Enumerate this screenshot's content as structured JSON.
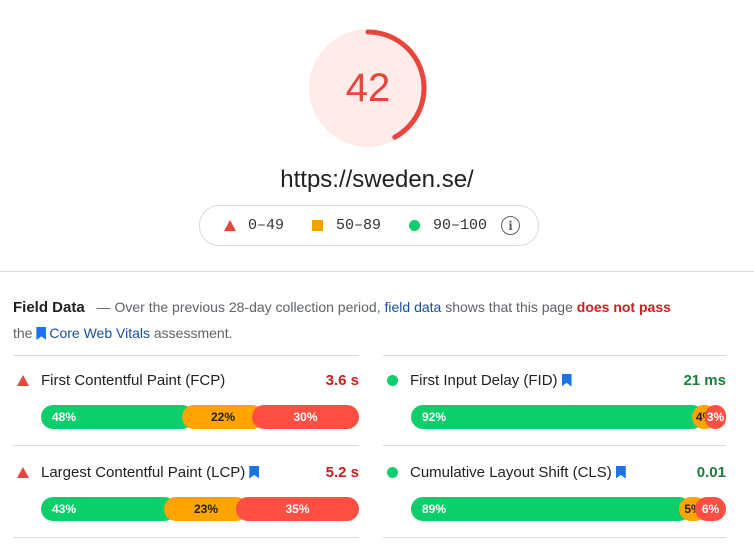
{
  "score": {
    "value": "42",
    "fraction": 0.42
  },
  "url": "https://sweden.se/",
  "legend": [
    {
      "icon": "triangle-red",
      "label": "0–49"
    },
    {
      "icon": "square-orange",
      "label": "50–89"
    },
    {
      "icon": "circle-green",
      "label": "90–100"
    }
  ],
  "field_data": {
    "title": "Field Data",
    "dash": "—",
    "text_a": "Over the previous 28-day collection period,",
    "link_a": "field data",
    "text_b": "shows that this page",
    "fail": "does not pass",
    "text_c": "the",
    "link_b": "Core Web Vitals",
    "text_d": "assessment."
  },
  "metrics": [
    {
      "name": "First Contentful Paint (FCP)",
      "value": "3.6 s",
      "status": "red",
      "bookmark": false,
      "dist": [
        {
          "label": "48%",
          "pct": 48
        },
        {
          "label": "22%",
          "pct": 22
        },
        {
          "label": "30%",
          "pct": 30
        }
      ]
    },
    {
      "name": "First Input Delay (FID)",
      "value": "21 ms",
      "status": "green",
      "bookmark": true,
      "dist": [
        {
          "label": "92%",
          "pct": 92
        },
        {
          "label": "4%",
          "pct": 4
        },
        {
          "label": "3%",
          "pct": 3
        }
      ]
    },
    {
      "name": "Largest Contentful Paint (LCP)",
      "value": "5.2 s",
      "status": "red",
      "bookmark": true,
      "dist": [
        {
          "label": "43%",
          "pct": 43
        },
        {
          "label": "23%",
          "pct": 23
        },
        {
          "label": "35%",
          "pct": 35
        }
      ]
    },
    {
      "name": "Cumulative Layout Shift (CLS)",
      "value": "0.01",
      "status": "green",
      "bookmark": true,
      "dist": [
        {
          "label": "89%",
          "pct": 89
        },
        {
          "label": "5%",
          "pct": 5
        },
        {
          "label": "6%",
          "pct": 6
        }
      ]
    }
  ],
  "colors": {
    "fail": "#ff4e42",
    "average": "#ffa400",
    "pass": "#0cce6b",
    "score": "#e8453c"
  }
}
